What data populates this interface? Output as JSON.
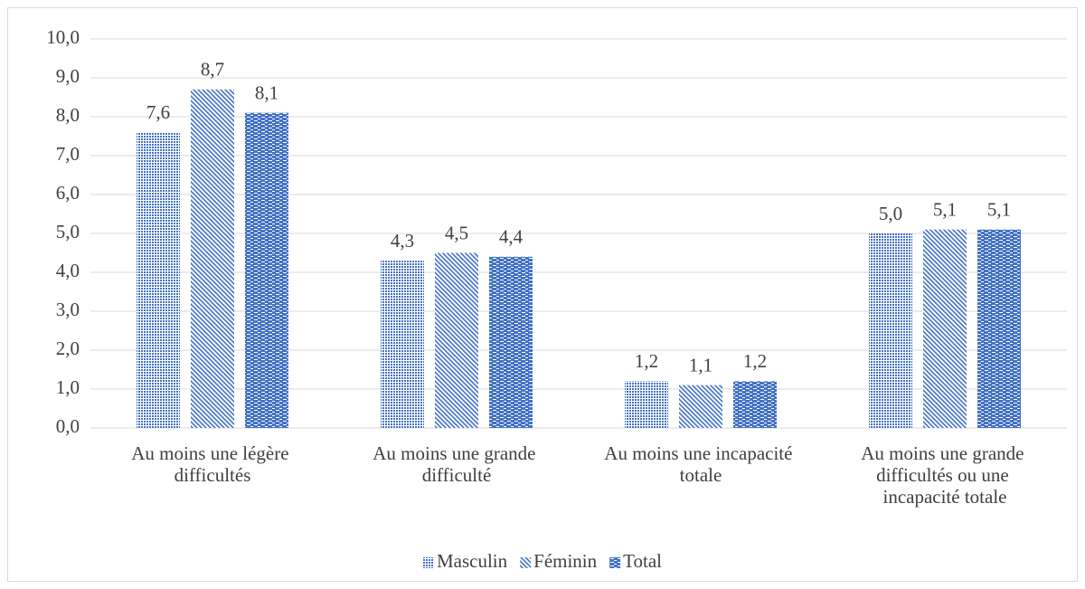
{
  "chart_data": {
    "type": "bar",
    "categories": [
      "Au moins une légère difficultés",
      "Au moins une grande difficulté",
      "Au moins une incapacité totale",
      "Au moins une grande difficultés ou une incapacité totale"
    ],
    "series": [
      {
        "name": "Masculin",
        "color": "#4472c4",
        "values": [
          7.6,
          4.3,
          1.2,
          5.0
        ],
        "value_labels": [
          "7,6",
          "4,3",
          "1,2",
          "5,0"
        ]
      },
      {
        "name": "Féminin",
        "color": "#4472c4",
        "values": [
          8.7,
          4.5,
          1.1,
          5.1
        ],
        "value_labels": [
          "8,7",
          "4,5",
          "1,1",
          "5,1"
        ]
      },
      {
        "name": "Total",
        "color": "#4472c4",
        "values": [
          8.1,
          4.4,
          1.2,
          5.1
        ],
        "value_labels": [
          "8,1",
          "4,4",
          "1,2",
          "5,1"
        ]
      }
    ],
    "ylim": [
      0,
      10
    ],
    "yticks": [
      {
        "value": 0,
        "label": "0,0"
      },
      {
        "value": 1,
        "label": "1,0"
      },
      {
        "value": 2,
        "label": "2,0"
      },
      {
        "value": 3,
        "label": "3,0"
      },
      {
        "value": 4,
        "label": "4,0"
      },
      {
        "value": 5,
        "label": "5,0"
      },
      {
        "value": 6,
        "label": "6,0"
      },
      {
        "value": 7,
        "label": "7,0"
      },
      {
        "value": 8,
        "label": "8,0"
      },
      {
        "value": 9,
        "label": "9,0"
      },
      {
        "value": 10,
        "label": "10,0"
      }
    ],
    "grid": true,
    "legend": "bottom"
  }
}
